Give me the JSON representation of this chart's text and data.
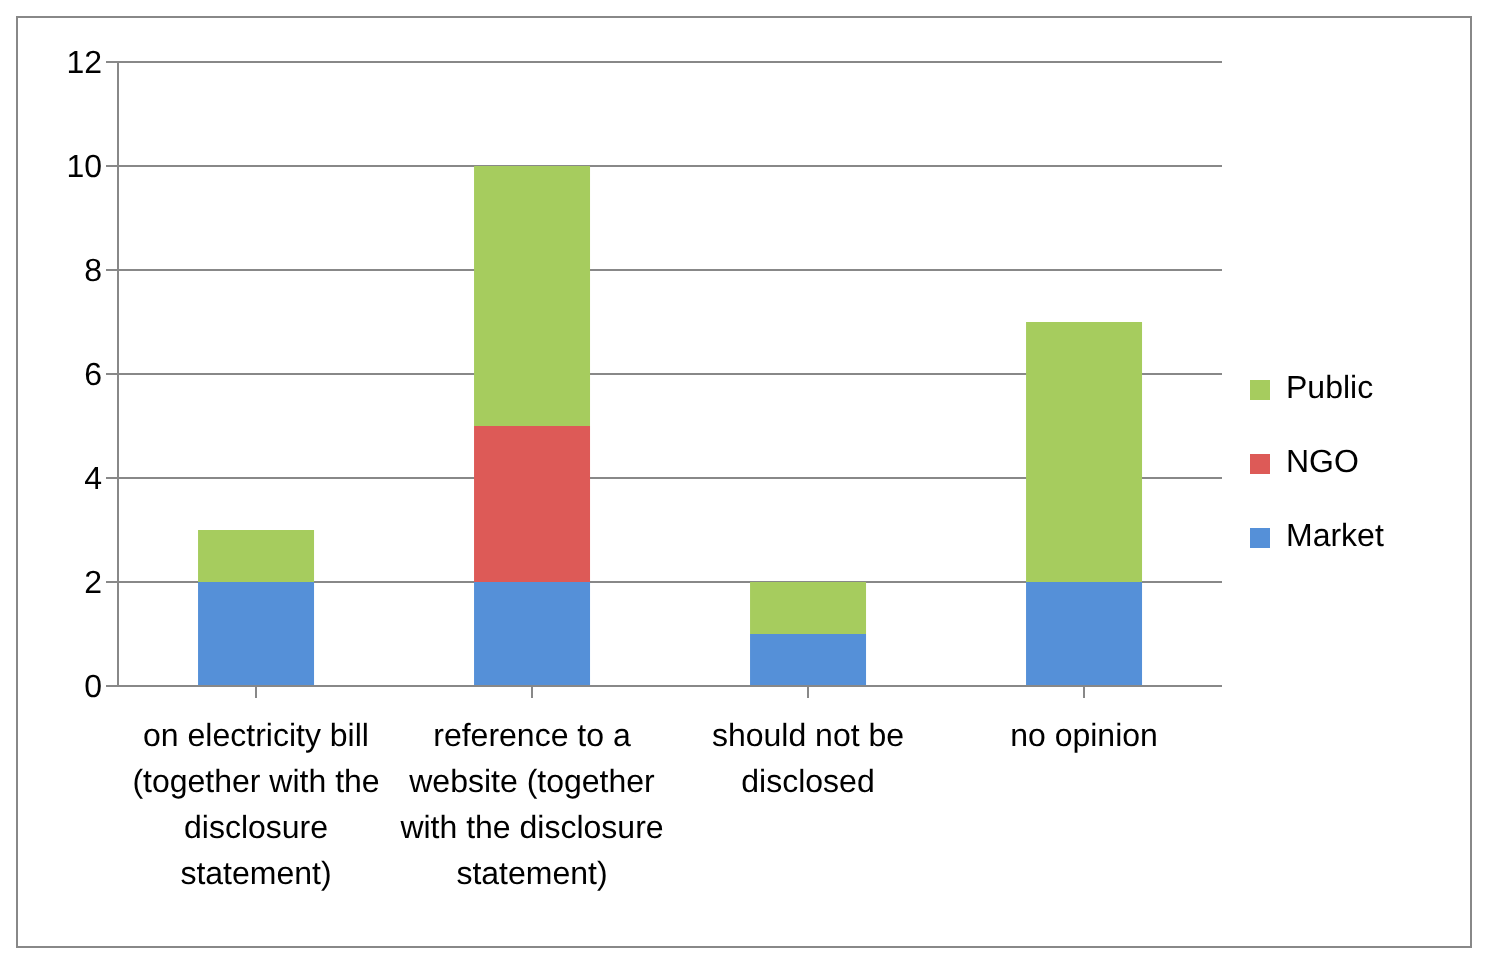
{
  "chart_data": {
    "type": "bar",
    "stacked": true,
    "categories": [
      "on electricity bill (together with the disclosure statement)",
      "reference to a website (together with the disclosure statement)",
      "should not be disclosed",
      "no opinion"
    ],
    "series": [
      {
        "name": "Market",
        "color": "#5590d8",
        "values": [
          2,
          2,
          1,
          2
        ]
      },
      {
        "name": "NGO",
        "color": "#dd5a57",
        "values": [
          0,
          3,
          0,
          0
        ]
      },
      {
        "name": "Public",
        "color": "#a6cc5e",
        "values": [
          1,
          5,
          1,
          5
        ]
      }
    ],
    "ylim": [
      0,
      12
    ],
    "yticks": [
      0,
      2,
      4,
      6,
      8,
      10,
      12
    ],
    "grid": "y",
    "legend": "right"
  }
}
